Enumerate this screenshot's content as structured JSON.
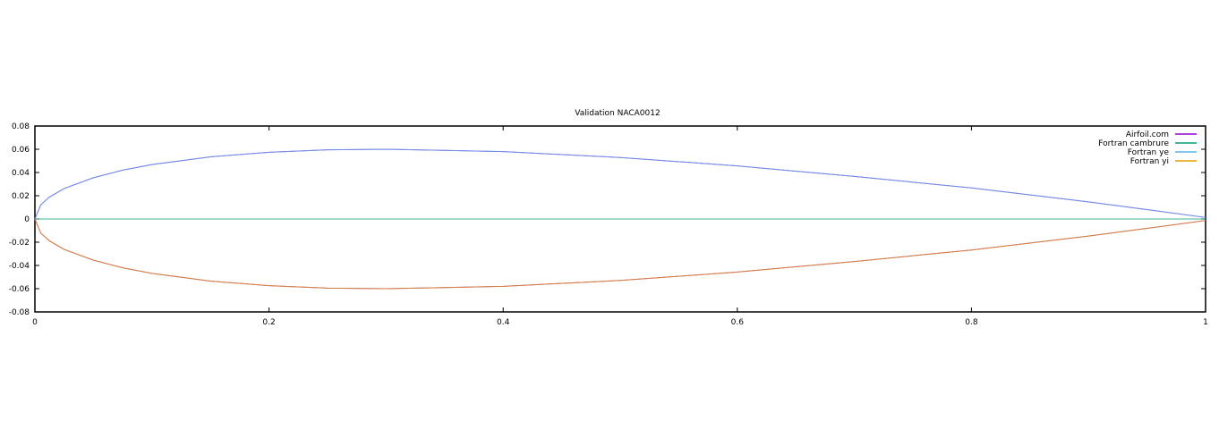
{
  "chart_data": {
    "type": "line",
    "title": "Validation NACA0012",
    "xlabel": "",
    "ylabel": "",
    "xlim": [
      0,
      1
    ],
    "ylim": [
      -0.08,
      0.08
    ],
    "x_ticks": [
      "0",
      "0.2",
      "0.4",
      "0.6",
      "0.8",
      "1"
    ],
    "y_ticks": [
      "0.08",
      "0.06",
      "0.04",
      "0.02",
      "0",
      "-0.02",
      "-0.04",
      "-0.06",
      "-0.08"
    ],
    "grid": false,
    "legend_position": "top-right",
    "series": [
      {
        "name": "Airfoil.com",
        "color": "#9400d3",
        "x": [
          1.0,
          0.95,
          0.9,
          0.8,
          0.7,
          0.6,
          0.5,
          0.4,
          0.3,
          0.25,
          0.2,
          0.15,
          0.1,
          0.075,
          0.05,
          0.025,
          0.0125,
          0.005,
          0.0,
          0.005,
          0.0125,
          0.025,
          0.05,
          0.075,
          0.1,
          0.15,
          0.2,
          0.25,
          0.3,
          0.4,
          0.5,
          0.6,
          0.7,
          0.8,
          0.9,
          0.95,
          1.0
        ],
        "y": [
          0.0013,
          0.0081,
          0.0147,
          0.0267,
          0.0366,
          0.0457,
          0.0529,
          0.058,
          0.06,
          0.0595,
          0.0574,
          0.0535,
          0.0468,
          0.042,
          0.0355,
          0.0262,
          0.0189,
          0.0122,
          0.0,
          -0.0122,
          -0.0189,
          -0.0262,
          -0.0355,
          -0.042,
          -0.0468,
          -0.0535,
          -0.0574,
          -0.0595,
          -0.06,
          -0.058,
          -0.0529,
          -0.0457,
          -0.0366,
          -0.0267,
          -0.0147,
          -0.0081,
          -0.0013
        ]
      },
      {
        "name": "Fortran cambrure",
        "color": "#009e73",
        "x": [
          0.0,
          0.1,
          0.2,
          0.3,
          0.4,
          0.5,
          0.6,
          0.7,
          0.8,
          0.9,
          1.0
        ],
        "y": [
          0,
          0,
          0,
          0,
          0,
          0,
          0,
          0,
          0,
          0,
          0
        ]
      },
      {
        "name": "Fortran ye",
        "color": "#56b4e9",
        "x": [
          0.0,
          0.005,
          0.0125,
          0.025,
          0.05,
          0.075,
          0.1,
          0.15,
          0.2,
          0.25,
          0.3,
          0.4,
          0.5,
          0.6,
          0.7,
          0.8,
          0.9,
          0.95,
          1.0
        ],
        "y": [
          0.0,
          0.0122,
          0.0189,
          0.0262,
          0.0355,
          0.042,
          0.0468,
          0.0535,
          0.0574,
          0.0595,
          0.06,
          0.058,
          0.0529,
          0.0457,
          0.0366,
          0.0267,
          0.0147,
          0.0081,
          0.0013
        ]
      },
      {
        "name": "Fortran yi",
        "color": "#e69f00",
        "x": [
          0.0,
          0.005,
          0.0125,
          0.025,
          0.05,
          0.075,
          0.1,
          0.15,
          0.2,
          0.25,
          0.3,
          0.4,
          0.5,
          0.6,
          0.7,
          0.8,
          0.9,
          0.95,
          1.0
        ],
        "y": [
          0.0,
          -0.0122,
          -0.0189,
          -0.0262,
          -0.0355,
          -0.042,
          -0.0468,
          -0.0535,
          -0.0574,
          -0.0595,
          -0.06,
          -0.058,
          -0.0529,
          -0.0457,
          -0.0366,
          -0.0267,
          -0.0147,
          -0.0081,
          -0.0013
        ]
      }
    ]
  }
}
